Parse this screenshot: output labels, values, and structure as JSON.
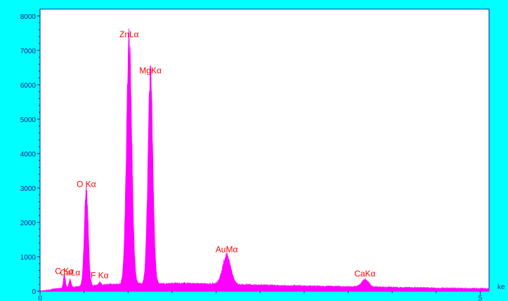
{
  "chart_data": {
    "type": "area",
    "xlabel": "ke",
    "ylabel": "",
    "xlim": [
      0,
      5.1
    ],
    "ylim": [
      0,
      8200
    ],
    "x_ticks": [
      {
        "value": 0,
        "label": "0"
      },
      {
        "value": 5,
        "label": "5"
      }
    ],
    "y_ticks": [
      {
        "value": 0,
        "label": "0"
      },
      {
        "value": 1000,
        "label": "1000"
      },
      {
        "value": 2000,
        "label": "2000"
      },
      {
        "value": 3000,
        "label": "3000"
      },
      {
        "value": 4000,
        "label": "4000"
      },
      {
        "value": 5000,
        "label": "5000"
      },
      {
        "value": 6000,
        "label": "6000"
      },
      {
        "value": 7000,
        "label": "7000"
      },
      {
        "value": 8000,
        "label": "8000"
      }
    ],
    "grid": false,
    "peak_labels": [
      {
        "label": "C Kα",
        "x": 0.277,
        "y": 420
      },
      {
        "label": "CaLα",
        "x": 0.341,
        "y": 380
      },
      {
        "label": "O Kα",
        "x": 0.525,
        "y": 2950
      },
      {
        "label": "F Kα",
        "x": 0.677,
        "y": 300
      },
      {
        "label": "ZnLα",
        "x": 1.012,
        "y": 7300
      },
      {
        "label": "MgKα",
        "x": 1.254,
        "y": 6250
      },
      {
        "label": "AuMα",
        "x": 2.12,
        "y": 1050
      },
      {
        "label": "CaKα",
        "x": 3.69,
        "y": 350
      }
    ],
    "baseline": [
      [
        0.0,
        0
      ],
      [
        0.08,
        30
      ],
      [
        0.15,
        60
      ],
      [
        0.5,
        140
      ],
      [
        0.8,
        200
      ],
      [
        1.6,
        230
      ],
      [
        2.0,
        210
      ],
      [
        2.8,
        160
      ],
      [
        3.5,
        130
      ],
      [
        4.5,
        90
      ],
      [
        5.1,
        70
      ]
    ],
    "peaks": [
      {
        "x": 0.277,
        "height": 380,
        "width": 0.012
      },
      {
        "x": 0.341,
        "height": 240,
        "width": 0.012
      },
      {
        "x": 0.525,
        "height": 2800,
        "width": 0.022
      },
      {
        "x": 0.677,
        "height": 90,
        "width": 0.015
      },
      {
        "x": 1.012,
        "height": 7050,
        "width": 0.03
      },
      {
        "x": 1.254,
        "height": 6000,
        "width": 0.028
      },
      {
        "x": 2.12,
        "height": 850,
        "width": 0.045
      },
      {
        "x": 3.69,
        "height": 220,
        "width": 0.04
      }
    ],
    "fill_color": "#ff00ff",
    "label_color": "#ff0000",
    "axis_color": "#1a1a8c",
    "plot_background": "#ffffff",
    "page_background": "#00ffff"
  }
}
